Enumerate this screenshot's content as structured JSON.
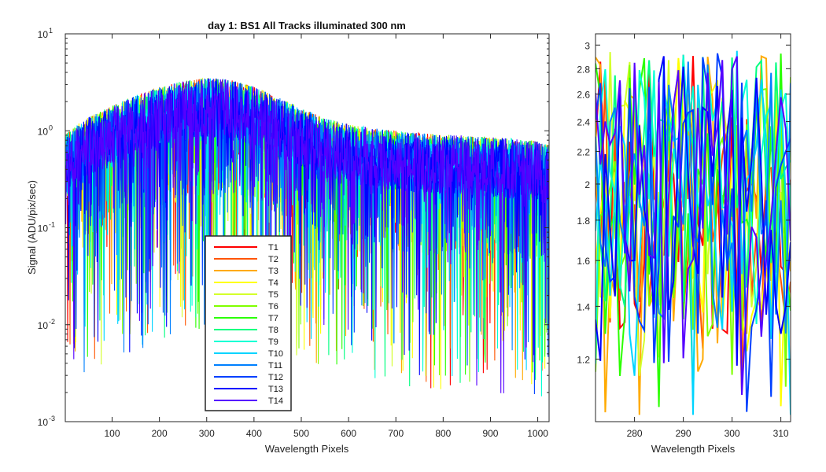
{
  "chart_data": [
    {
      "type": "line",
      "title": "day 1: BS1   All Tracks illuminated   300 nm",
      "xlabel": "Wavelength Pixels",
      "ylabel": "Signal (ADU/pix/sec)",
      "yscale": "log",
      "xlim": [
        1,
        1024
      ],
      "ylim": [
        0.001,
        10
      ],
      "xticks": [
        100,
        200,
        300,
        400,
        500,
        600,
        700,
        800,
        900,
        1000
      ],
      "yticks": [
        {
          "value": 0.001,
          "base": "10",
          "exp": "-3"
        },
        {
          "value": 0.01,
          "base": "10",
          "exp": "-2"
        },
        {
          "value": 0.1,
          "base": "10",
          "exp": "-1"
        },
        {
          "value": 1,
          "base": "10",
          "exp": "0"
        },
        {
          "value": 10,
          "base": "10",
          "exp": "1"
        }
      ],
      "legend_position": "lower-left",
      "grid": false,
      "envelope": {
        "x": [
          1,
          50,
          100,
          150,
          200,
          250,
          280,
          300,
          330,
          360,
          400,
          450,
          500,
          550,
          600,
          650,
          700,
          750,
          800,
          850,
          900,
          950,
          1000,
          1024
        ],
        "median": [
          0.55,
          0.8,
          1.05,
          1.35,
          1.65,
          1.9,
          2.0,
          2.05,
          2.0,
          1.9,
          1.65,
          1.3,
          1.0,
          0.78,
          0.68,
          0.62,
          0.58,
          0.55,
          0.53,
          0.52,
          0.5,
          0.48,
          0.45,
          0.42
        ]
      },
      "series": [
        {
          "name": "T1",
          "color": "#ff0000"
        },
        {
          "name": "T2",
          "color": "#ff5500"
        },
        {
          "name": "T3",
          "color": "#ffaa00"
        },
        {
          "name": "T4",
          "color": "#ffff00"
        },
        {
          "name": "T5",
          "color": "#d4ff2b"
        },
        {
          "name": "T6",
          "color": "#80ff00"
        },
        {
          "name": "T7",
          "color": "#2bff00"
        },
        {
          "name": "T8",
          "color": "#00ff80"
        },
        {
          "name": "T9",
          "color": "#00ffd4"
        },
        {
          "name": "T10",
          "color": "#00d4ff"
        },
        {
          "name": "T11",
          "color": "#0080ff"
        },
        {
          "name": "T12",
          "color": "#0040ff"
        },
        {
          "name": "T13",
          "color": "#0000ff"
        },
        {
          "name": "T14",
          "color": "#5500ff"
        }
      ]
    },
    {
      "type": "line",
      "title": "",
      "xlabel": "Wavelength Pixels",
      "ylabel": "",
      "yscale": "log",
      "xlim": [
        272,
        312
      ],
      "ylim": [
        1.0,
        3.1
      ],
      "xticks": [
        280,
        290,
        300,
        310
      ],
      "yticks": [
        1.2,
        1.4,
        1.6,
        1.8,
        2,
        2.2,
        2.4,
        2.6,
        2.8,
        3
      ],
      "ytick_labels": [
        "1.2",
        "1.4",
        "1.6",
        "1.8",
        "2",
        "2.2",
        "2.4",
        "2.6",
        "2.8",
        "3"
      ],
      "level_median": 1.95,
      "series": [
        {
          "name": "T1",
          "color": "#ff0000"
        },
        {
          "name": "T2",
          "color": "#ff5500"
        },
        {
          "name": "T3",
          "color": "#ffaa00"
        },
        {
          "name": "T4",
          "color": "#ffff00"
        },
        {
          "name": "T5",
          "color": "#d4ff2b"
        },
        {
          "name": "T6",
          "color": "#80ff00"
        },
        {
          "name": "T7",
          "color": "#2bff00"
        },
        {
          "name": "T8",
          "color": "#00ff80"
        },
        {
          "name": "T9",
          "color": "#00ffd4"
        },
        {
          "name": "T10",
          "color": "#00d4ff"
        },
        {
          "name": "T11",
          "color": "#0080ff"
        },
        {
          "name": "T12",
          "color": "#0040ff"
        },
        {
          "name": "T13",
          "color": "#0000ff"
        },
        {
          "name": "T14",
          "color": "#5500ff"
        }
      ]
    }
  ]
}
